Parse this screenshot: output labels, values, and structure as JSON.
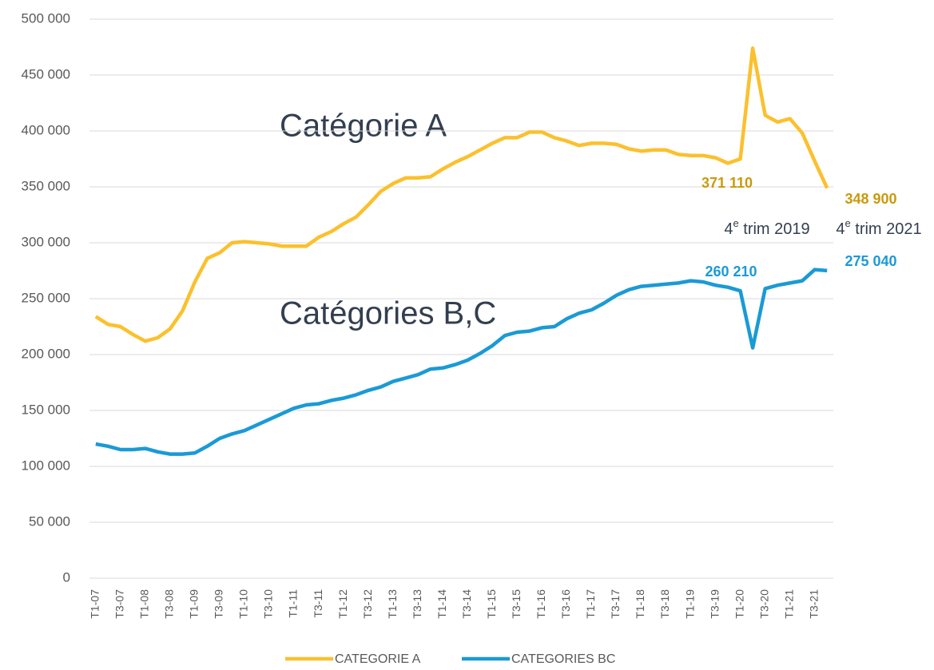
{
  "chart_data": {
    "type": "line",
    "categories": [
      "T1-07",
      null,
      "T3-07",
      null,
      "T1-08",
      null,
      "T3-08",
      null,
      "T1-09",
      null,
      "T3-09",
      null,
      "T1-10",
      null,
      "T3-10",
      null,
      "T1-11",
      null,
      "T3-11",
      null,
      "T1-12",
      null,
      "T3-12",
      null,
      "T1-13",
      null,
      "T3-13",
      null,
      "T1-14",
      null,
      "T3-14",
      null,
      "T1-15",
      null,
      "T3-15",
      null,
      "T1-16",
      null,
      "T3-16",
      null,
      "T1-17",
      null,
      "T3-17",
      null,
      "T1-18",
      null,
      "T3-18",
      null,
      "T1-19",
      null,
      "T3-19",
      null,
      "T1-20",
      null,
      "T3-20",
      null,
      "T1-21",
      null,
      "T3-21",
      null
    ],
    "series": [
      {
        "name": "CATEGORIE A",
        "color": "#fbc02d",
        "label_color": "#c99a0c",
        "values": [
          234000,
          227000,
          225000,
          218000,
          212000,
          215000,
          223000,
          239000,
          265000,
          286000,
          291000,
          300000,
          301000,
          300000,
          299000,
          297000,
          297000,
          297000,
          305000,
          310000,
          317000,
          323000,
          334000,
          346000,
          353000,
          358000,
          358000,
          359000,
          366000,
          372000,
          377000,
          383000,
          389000,
          394000,
          394000,
          399000,
          399000,
          394000,
          391000,
          387000,
          389000,
          389000,
          388000,
          384000,
          382000,
          383000,
          383000,
          379000,
          378000,
          378000,
          376000,
          371110,
          375000,
          474000,
          414000,
          408000,
          411000,
          398000,
          373000,
          348900
        ],
        "value_labels": [
          null,
          null,
          null,
          null,
          null,
          null,
          null,
          null,
          null,
          null,
          null,
          null,
          null,
          null,
          null,
          null,
          null,
          null,
          null,
          null,
          null,
          null,
          null,
          null,
          null,
          null,
          null,
          null,
          null,
          null,
          null,
          null,
          null,
          null,
          null,
          null,
          null,
          null,
          null,
          null,
          null,
          null,
          null,
          null,
          null,
          null,
          null,
          null,
          null,
          null,
          null,
          "371 110",
          null,
          null,
          null,
          null,
          null,
          null,
          null,
          "348 900"
        ]
      },
      {
        "name": "CATEGORIES BC",
        "color": "#1a9ad6",
        "label_color": "#1a9ad6",
        "values": [
          120000,
          118000,
          115000,
          115000,
          116000,
          113000,
          111000,
          111000,
          112000,
          118000,
          125000,
          129000,
          132000,
          137000,
          142000,
          147000,
          152000,
          155000,
          156000,
          159000,
          161000,
          164000,
          168000,
          171000,
          176000,
          179000,
          182000,
          187000,
          188000,
          191000,
          195000,
          201000,
          208000,
          217000,
          220000,
          221000,
          224000,
          225000,
          232000,
          237000,
          240000,
          246000,
          253000,
          258000,
          261000,
          262000,
          263000,
          264000,
          266000,
          265000,
          262000,
          260210,
          257000,
          206000,
          259000,
          262000,
          264000,
          266000,
          276000,
          275040
        ],
        "value_labels": [
          null,
          null,
          null,
          null,
          null,
          null,
          null,
          null,
          null,
          null,
          null,
          null,
          null,
          null,
          null,
          null,
          null,
          null,
          null,
          null,
          null,
          null,
          null,
          null,
          null,
          null,
          null,
          null,
          null,
          null,
          null,
          null,
          null,
          null,
          null,
          null,
          null,
          null,
          null,
          null,
          null,
          null,
          null,
          null,
          null,
          null,
          null,
          null,
          null,
          null,
          null,
          "260 210",
          null,
          null,
          null,
          null,
          null,
          null,
          null,
          "275 040"
        ]
      }
    ],
    "annotations": [
      "Catégorie A",
      "Catégories B,C"
    ],
    "period_labels": [
      {
        "number": "4",
        "sup": "e",
        "text": " trim 2019"
      },
      {
        "number": "4",
        "sup": "e",
        "text": " trim 2021"
      }
    ],
    "ylim": [
      0,
      500000
    ],
    "yticks": [
      0,
      {
        "value": 50000,
        "label": "50 000"
      },
      {
        "value": 100000,
        "label": "100 000"
      },
      {
        "value": 150000,
        "label": "150 000"
      },
      {
        "value": 200000,
        "label": "200 000"
      },
      {
        "value": 250000,
        "label": "250 000"
      },
      {
        "value": 300000,
        "label": "300 000"
      },
      {
        "value": 350000,
        "label": "350 000"
      },
      {
        "value": 400000,
        "label": "400 000"
      },
      {
        "value": 450000,
        "label": "450 000"
      },
      {
        "value": 500000,
        "label": "500 000"
      }
    ],
    "grid": true,
    "legend": "bottom"
  }
}
